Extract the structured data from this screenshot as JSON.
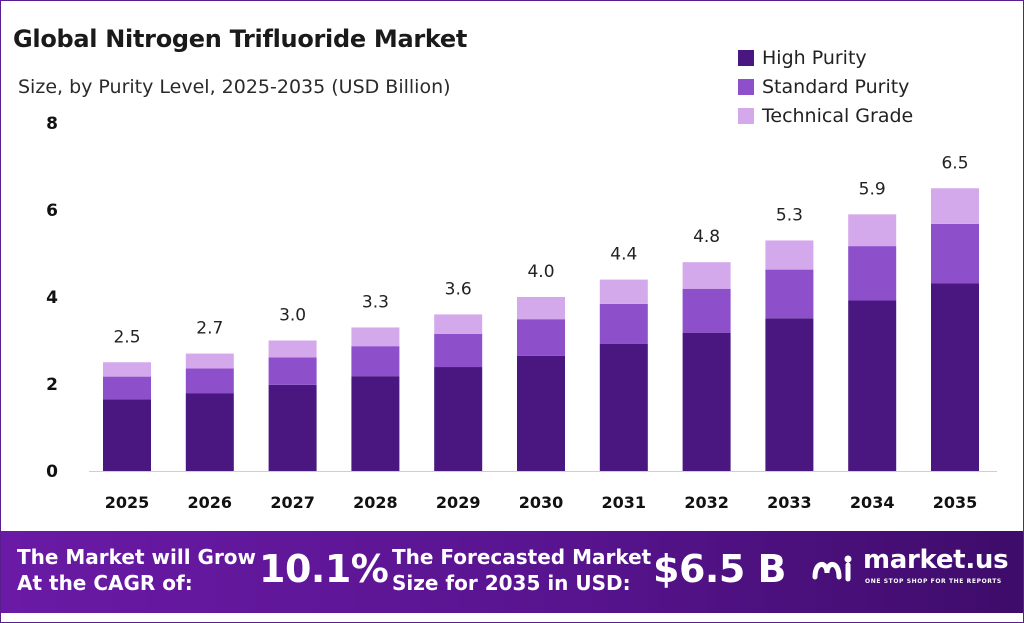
{
  "chart_data": {
    "type": "bar",
    "stacked": true,
    "title": "Global Nitrogen Trifluoride Market",
    "subtitle": "Size, by Purity Level, 2025-2035 (USD Billion)",
    "xlabel": "",
    "ylabel": "",
    "ylim": [
      0,
      8
    ],
    "yticks": [
      0,
      2,
      4,
      6,
      8
    ],
    "categories": [
      "2025",
      "2026",
      "2027",
      "2028",
      "2029",
      "2030",
      "2031",
      "2032",
      "2033",
      "2034",
      "2035"
    ],
    "series": [
      {
        "name": "High Purity",
        "color": "#4a1780",
        "values": [
          1.65,
          1.79,
          1.98,
          2.18,
          2.39,
          2.65,
          2.92,
          3.18,
          3.51,
          3.92,
          4.31
        ]
      },
      {
        "name": "Standard Purity",
        "color": "#8e4fcb",
        "values": [
          0.52,
          0.57,
          0.63,
          0.69,
          0.76,
          0.84,
          0.92,
          1.01,
          1.12,
          1.25,
          1.37
        ]
      },
      {
        "name": "Technical Grade",
        "color": "#d4a9ec",
        "values": [
          0.33,
          0.34,
          0.39,
          0.43,
          0.45,
          0.51,
          0.56,
          0.61,
          0.67,
          0.73,
          0.82
        ]
      }
    ],
    "totals": [
      "2.5",
      "2.7",
      "3.0",
      "3.3",
      "3.6",
      "4.0",
      "4.4",
      "4.8",
      "5.3",
      "5.9",
      "6.5"
    ],
    "legend_position": "top-right",
    "grid": false
  },
  "banner": {
    "cagr_text": "The Market will Grow\nAt the CAGR of:",
    "cagr_value": "10.1%",
    "forecast_text": "The Forecasted Market\nSize for 2035 in USD:",
    "forecast_value": "$6.5 B",
    "background_color": "#5c1694"
  },
  "brand": {
    "name": "market.us",
    "tagline": "ONE STOP SHOP FOR THE REPORTS",
    "logo_icon": "market-us-logo-icon"
  }
}
